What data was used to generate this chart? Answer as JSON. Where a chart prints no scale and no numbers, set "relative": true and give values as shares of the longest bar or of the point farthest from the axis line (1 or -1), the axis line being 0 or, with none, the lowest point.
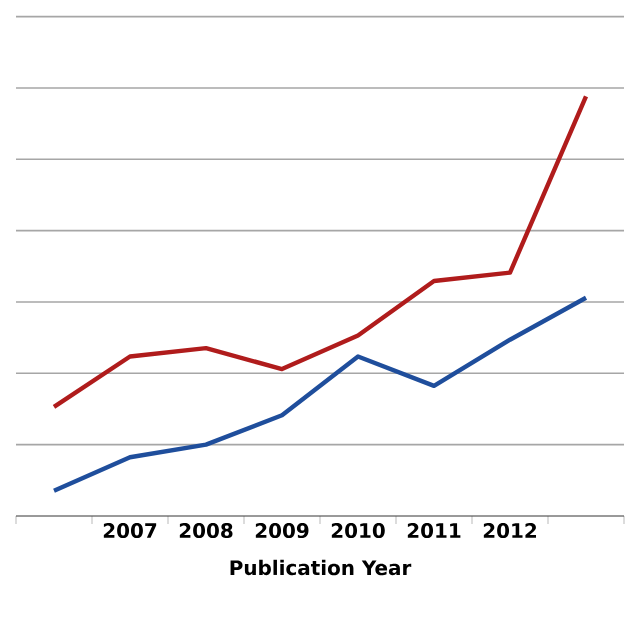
{
  "chart_data": {
    "type": "line",
    "xlabel": "Publication Year",
    "relative": true,
    "grid": "y",
    "categories": [
      null,
      "2007",
      "2008",
      "2009",
      "2010",
      "2011",
      "2012",
      null
    ],
    "series": [
      {
        "color": "#b01c1c",
        "values": [
          0.26,
          0.38,
          0.4,
          0.35,
          0.43,
          0.56,
          0.58,
          1
        ]
      },
      {
        "color": "#1f4e9c",
        "values": [
          0.06,
          0.14,
          0.17,
          0.24,
          0.38,
          0.31,
          0.42,
          0.52
        ]
      }
    ]
  }
}
